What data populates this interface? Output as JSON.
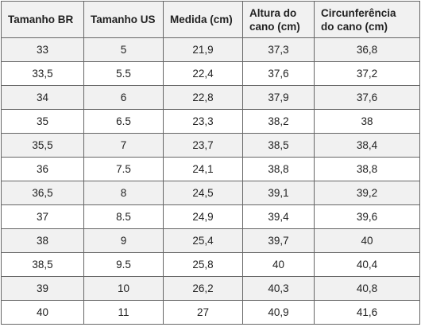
{
  "table": {
    "header": [
      "Tamanho BR",
      "Tamanho US",
      "Medida (cm)",
      "Altura do cano (cm)",
      "Circunferência do cano (cm)"
    ],
    "rows": [
      [
        "33",
        "5",
        "21,9",
        "37,3",
        "36,8"
      ],
      [
        "33,5",
        "5.5",
        "22,4",
        "37,6",
        "37,2"
      ],
      [
        "34",
        "6",
        "22,8",
        "37,9",
        "37,6"
      ],
      [
        "35",
        "6.5",
        "23,3",
        "38,2",
        "38"
      ],
      [
        "35,5",
        "7",
        "23,7",
        "38,5",
        "38,4"
      ],
      [
        "36",
        "7.5",
        "24,1",
        "38,8",
        "38,8"
      ],
      [
        "36,5",
        "8",
        "24,5",
        "39,1",
        "39,2"
      ],
      [
        "37",
        "8.5",
        "24,9",
        "39,4",
        "39,6"
      ],
      [
        "38",
        "9",
        "25,4",
        "39,7",
        "40"
      ],
      [
        "38,5",
        "9.5",
        "25,8",
        "40",
        "40,4"
      ],
      [
        "39",
        "10",
        "26,2",
        "40,3",
        "40,8"
      ],
      [
        "40",
        "11",
        "27",
        "40,9",
        "41,6"
      ]
    ]
  }
}
